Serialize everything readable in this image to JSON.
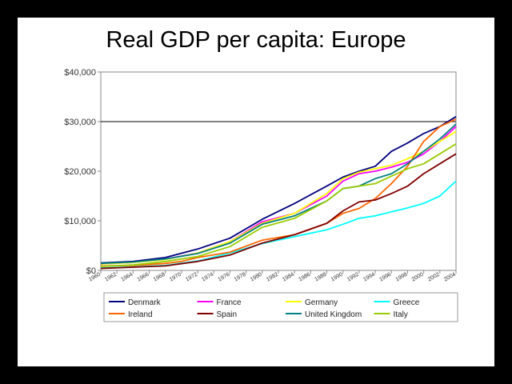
{
  "slide": {
    "title": "Real GDP per capita: Europe"
  },
  "chart_data": {
    "type": "line",
    "title": "",
    "xlabel": "",
    "ylabel": "",
    "xlim": [
      1960,
      2004
    ],
    "ylim": [
      0,
      40000
    ],
    "y_ticks": [
      0,
      10000,
      20000,
      30000,
      40000
    ],
    "y_tick_labels": [
      "$0",
      "$10,000",
      "$20,000",
      "$30,000",
      "$40,000"
    ],
    "x_tick_labels": [
      "1960",
      "1962",
      "1964",
      "1966",
      "1968",
      "1970",
      "1972",
      "1974",
      "1976",
      "1978",
      "1980",
      "1982",
      "1984",
      "1986",
      "1988",
      "1990",
      "1992",
      "1994",
      "1996",
      "1998",
      "2000",
      "2002",
      "2004"
    ],
    "grid": "horizontal line at $30,000",
    "legend_position": "bottom",
    "series": [
      {
        "name": "Denmark",
        "color": "#00007f",
        "x": [
          1960,
          1964,
          1968,
          1972,
          1976,
          1980,
          1984,
          1988,
          1990,
          1992,
          1994,
          1996,
          1998,
          2000,
          2002,
          2004
        ],
        "y": [
          1500,
          1800,
          2600,
          4300,
          6500,
          10300,
          13500,
          17000,
          18800,
          20000,
          21000,
          24000,
          25700,
          27600,
          29000,
          31000
        ]
      },
      {
        "name": "France",
        "color": "#ff00ff",
        "x": [
          1960,
          1964,
          1968,
          1972,
          1976,
          1980,
          1984,
          1988,
          1990,
          1992,
          1994,
          1996,
          1998,
          2000,
          2002,
          2004
        ],
        "y": [
          1300,
          1600,
          2300,
          3500,
          5800,
          9800,
          11500,
          15000,
          18000,
          19500,
          20000,
          20800,
          21800,
          23500,
          26000,
          29000
        ]
      },
      {
        "name": "Germany",
        "color": "#ffff00",
        "x": [
          1960,
          1964,
          1968,
          1972,
          1976,
          1980,
          1984,
          1988,
          1990,
          1992,
          1994,
          1996,
          1998,
          2000,
          2002,
          2004
        ],
        "y": [
          1300,
          1600,
          2200,
          3500,
          5800,
          9500,
          11500,
          15500,
          18500,
          19800,
          20500,
          21200,
          22500,
          24000,
          26000,
          28000
        ]
      },
      {
        "name": "Greece",
        "color": "#00ffff",
        "x": [
          1960,
          1964,
          1968,
          1972,
          1976,
          1980,
          1984,
          1988,
          1990,
          1992,
          1994,
          1996,
          1998,
          2000,
          2002,
          2004
        ],
        "y": [
          500,
          700,
          1000,
          1900,
          3500,
          5400,
          6800,
          8200,
          9300,
          10500,
          11000,
          11800,
          12600,
          13500,
          15000,
          18000
        ]
      },
      {
        "name": "Ireland",
        "color": "#ff6600",
        "x": [
          1960,
          1964,
          1968,
          1970,
          1972,
          1976,
          1980,
          1984,
          1988,
          1990,
          1992,
          1994,
          1996,
          1998,
          2000,
          2002,
          2004
        ],
        "y": [
          900,
          1000,
          1400,
          1800,
          2600,
          3700,
          6100,
          7200,
          9500,
          11500,
          12500,
          14500,
          17500,
          21000,
          26000,
          29000,
          30500
        ]
      },
      {
        "name": "Spain",
        "color": "#800000",
        "x": [
          1960,
          1964,
          1968,
          1972,
          1976,
          1980,
          1984,
          1988,
          1990,
          1992,
          1994,
          1996,
          1998,
          2000,
          2002,
          2004
        ],
        "y": [
          400,
          650,
          900,
          1800,
          3100,
          5500,
          7200,
          9500,
          12000,
          13800,
          14200,
          15500,
          17000,
          19500,
          21500,
          23500
        ]
      },
      {
        "name": "United Kingdom",
        "color": "#008080",
        "x": [
          1960,
          1964,
          1968,
          1972,
          1976,
          1980,
          1984,
          1988,
          1990,
          1992,
          1994,
          1996,
          1998,
          2000,
          2002,
          2004
        ],
        "y": [
          1400,
          1700,
          2300,
          3400,
          5500,
          9300,
          11000,
          14000,
          16500,
          17000,
          18500,
          19500,
          21500,
          24000,
          26500,
          29500
        ]
      },
      {
        "name": "Italy",
        "color": "#99cc00",
        "x": [
          1960,
          1964,
          1968,
          1972,
          1976,
          1980,
          1984,
          1988,
          1990,
          1992,
          1994,
          1996,
          1998,
          2000,
          2002,
          2004
        ],
        "y": [
          800,
          1100,
          1800,
          2800,
          4800,
          8700,
          10500,
          14000,
          16500,
          17000,
          17500,
          19000,
          20500,
          21500,
          23500,
          25500
        ]
      }
    ]
  }
}
